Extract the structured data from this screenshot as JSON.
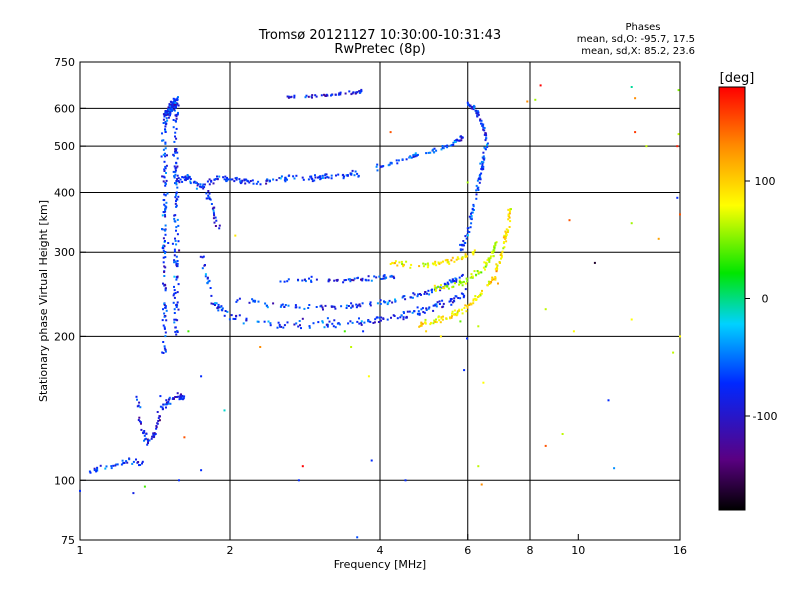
{
  "chart_data": {
    "type": "scatter",
    "title": "Tromsø 20121127 10:30:00-10:31:43",
    "subtitle": "RwPretec (8p)",
    "xlabel": "Frequency [MHz]",
    "ylabel": "Stationary phase Virtual Height [km]",
    "xscale": "log",
    "yscale": "log",
    "xlim": [
      1,
      16
    ],
    "ylim": [
      75,
      750
    ],
    "xticks": [
      1,
      2,
      4,
      6,
      8,
      10,
      16
    ],
    "xtick_labels": [
      "1",
      "2",
      "4",
      "6",
      "8",
      "10",
      "16"
    ],
    "xgrid": [
      2,
      4,
      6,
      8
    ],
    "yticks": [
      75,
      100,
      200,
      300,
      400,
      500,
      600,
      750
    ],
    "ytick_labels": [
      "75",
      "100",
      "200",
      "300",
      "400",
      "500",
      "600",
      "750"
    ],
    "ygrid": [
      100,
      200,
      300,
      400,
      500,
      600
    ],
    "grid": true,
    "phase_info": {
      "heading": "Phases",
      "line_o": "mean, sd,O: -95.7, 17.5",
      "line_x": "mean, sd,X: 85.2, 23.6"
    },
    "colorbar": {
      "label": "[deg]",
      "range": [
        -180,
        180
      ],
      "ticks": [
        100,
        0,
        -100
      ],
      "tick_labels": [
        "100",
        "0",
        "-100"
      ],
      "colormap": "rainbow (black-purple-blue-cyan-green-yellow-orange-red)",
      "colors": [
        "#000000",
        "#5a0082",
        "#0028ff",
        "#00d2ff",
        "#00e600",
        "#ffff00",
        "#ff8c00",
        "#ff0000"
      ]
    },
    "traces": [
      {
        "name": "",
        "phase": -100,
        "jitter": 0.012,
        "density": 3,
        "points": [
          [
            1.04,
            104
          ],
          [
            1.1,
            106
          ],
          [
            1.2,
            108
          ],
          [
            1.27,
            110
          ],
          [
            1.33,
            108
          ]
        ]
      },
      {
        "name": "",
        "phase": -110,
        "jitter": 0.015,
        "density": 4,
        "points": [
          [
            1.3,
            152
          ],
          [
            1.33,
            128
          ],
          [
            1.37,
            120
          ],
          [
            1.41,
            124
          ],
          [
            1.45,
            140
          ],
          [
            1.5,
            146
          ],
          [
            1.58,
            150
          ],
          [
            1.62,
            148
          ]
        ]
      },
      {
        "name": "",
        "phase": -100,
        "jitter": 0.02,
        "density": 40,
        "points": [
          [
            1.48,
            185
          ],
          [
            1.48,
            580
          ],
          [
            1.56,
            620
          ],
          [
            1.56,
            200
          ]
        ]
      },
      {
        "name": "",
        "phase": -100,
        "jitter": 0.012,
        "density": 6,
        "points": [
          [
            1.55,
            420
          ],
          [
            1.65,
            430
          ],
          [
            1.75,
            410
          ],
          [
            1.9,
            430
          ],
          [
            2.1,
            425
          ],
          [
            2.3,
            420
          ],
          [
            2.6,
            428
          ],
          [
            3.0,
            430
          ],
          [
            3.3,
            435
          ],
          [
            3.7,
            438
          ]
        ]
      },
      {
        "name": "",
        "phase": -100,
        "jitter": 0.015,
        "density": 4,
        "points": [
          [
            1.8,
            400
          ],
          [
            1.85,
            370
          ],
          [
            1.9,
            335
          ]
        ]
      },
      {
        "name": "",
        "phase": -110,
        "jitter": 0.007,
        "density": 5,
        "points": [
          [
            2.6,
            634
          ],
          [
            3.0,
            636
          ],
          [
            3.4,
            645
          ],
          [
            3.7,
            650
          ]
        ]
      },
      {
        "name": "",
        "phase": -95,
        "jitter": 0.01,
        "density": 6,
        "points": [
          [
            3.9,
            450
          ],
          [
            4.5,
            470
          ],
          [
            5.0,
            485
          ],
          [
            5.6,
            505
          ],
          [
            5.85,
            520
          ]
        ]
      },
      {
        "name": "",
        "phase": -100,
        "jitter": 0.018,
        "density": 6,
        "points": [
          [
            1.75,
            300
          ],
          [
            1.85,
            235
          ],
          [
            2.0,
            220
          ],
          [
            2.5,
            212
          ],
          [
            3.0,
            212
          ],
          [
            3.5,
            214
          ],
          [
            4.0,
            216
          ],
          [
            4.5,
            222
          ],
          [
            5.0,
            228
          ],
          [
            5.5,
            236
          ],
          [
            5.9,
            245
          ]
        ]
      },
      {
        "name": "",
        "phase": -100,
        "jitter": 0.012,
        "density": 5,
        "points": [
          [
            2.0,
            240
          ],
          [
            2.5,
            232
          ],
          [
            3.0,
            230
          ],
          [
            3.5,
            232
          ],
          [
            4.0,
            235
          ],
          [
            4.5,
            240
          ],
          [
            5.0,
            248
          ],
          [
            5.5,
            258
          ],
          [
            5.9,
            270
          ]
        ]
      },
      {
        "name": "",
        "phase": -100,
        "jitter": 0.01,
        "density": 5,
        "points": [
          [
            2.5,
            263
          ],
          [
            3.0,
            262
          ],
          [
            3.5,
            262
          ],
          [
            4.0,
            265
          ],
          [
            4.3,
            268
          ]
        ]
      },
      {
        "name": "",
        "phase": 85,
        "jitter": 0.012,
        "density": 5,
        "points": [
          [
            4.2,
            285
          ],
          [
            4.8,
            280
          ],
          [
            5.3,
            285
          ],
          [
            5.8,
            290
          ],
          [
            6.2,
            300
          ]
        ]
      },
      {
        "name": "",
        "phase": 90,
        "jitter": 0.012,
        "density": 6,
        "points": [
          [
            4.8,
            212
          ],
          [
            5.2,
            215
          ],
          [
            5.6,
            222
          ],
          [
            6.0,
            230
          ],
          [
            6.4,
            245
          ],
          [
            6.8,
            268
          ],
          [
            7.0,
            295
          ],
          [
            7.2,
            330
          ],
          [
            7.3,
            370
          ]
        ]
      },
      {
        "name": "",
        "phase": 60,
        "jitter": 0.012,
        "density": 5,
        "points": [
          [
            5.0,
            250
          ],
          [
            5.5,
            255
          ],
          [
            6.0,
            262
          ],
          [
            6.4,
            275
          ],
          [
            6.7,
            295
          ],
          [
            6.9,
            320
          ]
        ]
      },
      {
        "name": "",
        "phase": -90,
        "jitter": 0.014,
        "density": 6,
        "points": [
          [
            5.8,
            300
          ],
          [
            6.0,
            330
          ],
          [
            6.2,
            380
          ],
          [
            6.4,
            450
          ],
          [
            6.5,
            520
          ]
        ]
      },
      {
        "name": "",
        "phase": -100,
        "jitter": 0.01,
        "density": 6,
        "points": [
          [
            6.0,
            610
          ],
          [
            6.2,
            600
          ],
          [
            6.4,
            560
          ],
          [
            6.6,
            500
          ]
        ]
      }
    ],
    "scatter": [
      [
        1.0,
        95,
        -100
      ],
      [
        1.28,
        94,
        -110
      ],
      [
        1.35,
        97,
        20
      ],
      [
        1.58,
        100,
        -100
      ],
      [
        1.45,
        150,
        -100
      ],
      [
        1.62,
        123,
        150
      ],
      [
        1.75,
        105,
        -100
      ],
      [
        2.3,
        190,
        130
      ],
      [
        2.8,
        107,
        180
      ],
      [
        3.4,
        205,
        20
      ],
      [
        3.6,
        76,
        -90
      ],
      [
        3.7,
        205,
        -100
      ],
      [
        3.5,
        190,
        60
      ],
      [
        3.8,
        165,
        80
      ],
      [
        3.85,
        110,
        -100
      ],
      [
        2.75,
        100,
        -100
      ],
      [
        4.2,
        535,
        150
      ],
      [
        5.8,
        215,
        30
      ],
      [
        5.9,
        170,
        -100
      ],
      [
        5.98,
        198,
        -100
      ],
      [
        6.4,
        98,
        130
      ],
      [
        6.3,
        107,
        60
      ],
      [
        6.45,
        160,
        80
      ],
      [
        6.3,
        210,
        60
      ],
      [
        6.9,
        258,
        120
      ],
      [
        6.0,
        420,
        50
      ],
      [
        7.9,
        620,
        130
      ],
      [
        8.2,
        625,
        50
      ],
      [
        8.4,
        670,
        180
      ],
      [
        8.6,
        228,
        60
      ],
      [
        8.6,
        118,
        150
      ],
      [
        9.3,
        125,
        60
      ],
      [
        9.6,
        350,
        150
      ],
      [
        9.8,
        205,
        80
      ],
      [
        10.8,
        285,
        -170
      ],
      [
        11.5,
        147,
        -100
      ],
      [
        11.8,
        106,
        -70
      ],
      [
        12.8,
        665,
        -30
      ],
      [
        13.0,
        630,
        130
      ],
      [
        13.0,
        535,
        160
      ],
      [
        12.8,
        345,
        50
      ],
      [
        12.8,
        217,
        80
      ],
      [
        14.5,
        320,
        120
      ],
      [
        15.5,
        185,
        60
      ],
      [
        15.8,
        500,
        170
      ],
      [
        15.9,
        655,
        40
      ],
      [
        15.9,
        530,
        60
      ],
      [
        15.8,
        390,
        -100
      ],
      [
        16.0,
        360,
        150
      ],
      [
        16.0,
        200,
        80
      ],
      [
        13.7,
        500,
        60
      ],
      [
        4.5,
        100,
        -100
      ],
      [
        1.95,
        140,
        -40
      ],
      [
        1.65,
        205,
        20
      ],
      [
        2.05,
        325,
        90
      ],
      [
        1.75,
        165,
        -100
      ],
      [
        4.95,
        205,
        100
      ],
      [
        5.3,
        200,
        90
      ]
    ]
  }
}
